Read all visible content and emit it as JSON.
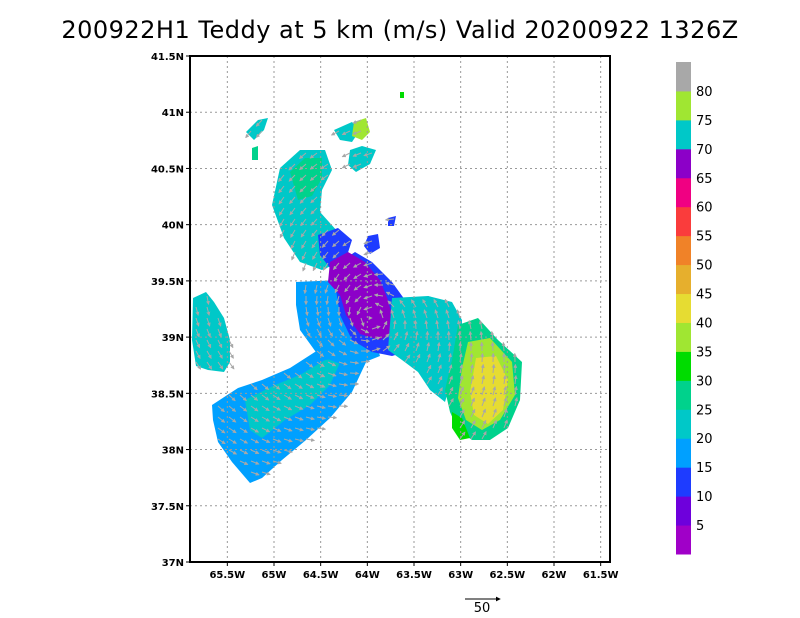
{
  "title": "200922H1 Teddy at 5 km (m/s) Valid 20200922 1326Z",
  "map": {
    "lon_range": [
      -65.9,
      -61.4
    ],
    "lat_range": [
      37.0,
      41.5
    ],
    "x_ticks": [
      "65.5W",
      "65W",
      "64.5W",
      "64W",
      "63.5W",
      "63W",
      "62.5W",
      "62W",
      "61.5W"
    ],
    "x_tick_values": [
      -65.5,
      -65.0,
      -64.5,
      -64.0,
      -63.5,
      -63.0,
      -62.5,
      -62.0,
      -61.5
    ],
    "y_ticks": [
      "37N",
      "37.5N",
      "38N",
      "38.5N",
      "39N",
      "39.5N",
      "40N",
      "40.5N",
      "41N",
      "41.5N"
    ],
    "y_tick_values": [
      37.0,
      37.5,
      38.0,
      38.5,
      39.0,
      39.5,
      40.0,
      40.5,
      41.0,
      41.5
    ],
    "grid": true,
    "vector_color": "#a8a8a8",
    "reference_vector_label": "50"
  },
  "colorbar": {
    "labels": [
      "5",
      "10",
      "15",
      "20",
      "25",
      "30",
      "35",
      "40",
      "45",
      "50",
      "55",
      "60",
      "65",
      "70",
      "75",
      "80"
    ],
    "colors": [
      "#a000c8",
      "#6e00dc",
      "#1e3cff",
      "#00a0ff",
      "#00c8c8",
      "#00d28c",
      "#00dc00",
      "#a0e632",
      "#e6dc32",
      "#e6af2d",
      "#f08228",
      "#fa3c3c",
      "#f00082",
      "#8c00c8",
      "#00c8c8",
      "#a0e632",
      "#a8a8a8"
    ]
  }
}
